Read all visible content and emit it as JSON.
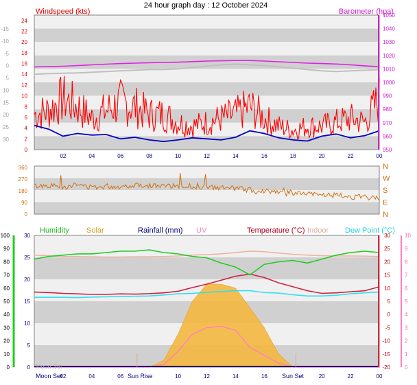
{
  "title": "24 hour graph day : 12 October 2024",
  "colors": {
    "wind": "#ff0000",
    "gust": "#ff0000",
    "avg": "#0000c0",
    "baro": "#e020e0",
    "baro_trace": "#c0c0c0",
    "dir": "#d07010",
    "humidity": "#22cc22",
    "solar": "#f5b840",
    "rain": "#000080",
    "uv": "#ff80c0",
    "temp": "#d02040",
    "indoor": "#f0b0a0",
    "dew": "#30e0f0",
    "band_dark": "#d0d0d0",
    "band_light": "#f0f0f0"
  },
  "x_ticks": [
    "02",
    "04",
    "06",
    "08",
    "10",
    "12",
    "14",
    "16",
    "18",
    "20",
    "22",
    "00"
  ],
  "chart_data": [
    {
      "type": "line",
      "title": "Windspeed (kts)",
      "left_axis": {
        "label": "Windspeed (kts)",
        "ticks": [
          "0",
          "2",
          "4",
          "6",
          "8",
          "10",
          "12",
          "14",
          "16",
          "18",
          "20",
          "22",
          "24"
        ],
        "range": [
          0,
          25
        ]
      },
      "outer_axis": {
        "ticks": [
          "-15",
          "-10",
          "-5",
          "0",
          "5",
          "10",
          "15",
          "20",
          "25",
          "30"
        ]
      },
      "right_axis": {
        "label": "Barometer (hpa)",
        "ticks": [
          "950",
          "960",
          "970",
          "980",
          "990",
          "1000",
          "1010",
          "1020",
          "1030",
          "1040",
          "1050"
        ],
        "range": [
          950,
          1050
        ]
      },
      "x_hours": [
        0,
        1,
        2,
        3,
        4,
        5,
        6,
        7,
        8,
        9,
        10,
        11,
        12,
        13,
        14,
        15,
        16,
        17,
        18,
        19,
        20,
        21,
        22,
        23,
        24
      ],
      "series": [
        {
          "name": "Barometer (hpa)",
          "values": [
            1011.5,
            1011.7,
            1012,
            1012.5,
            1013,
            1013.5,
            1014,
            1014.3,
            1014.6,
            1014.8,
            1015,
            1015.4,
            1015.8,
            1016,
            1016.2,
            1016.2,
            1015.8,
            1015.3,
            1014.8,
            1014.3,
            1014,
            1013.6,
            1013,
            1012.3,
            1011.6
          ]
        },
        {
          "name": "trace",
          "values": [
            1006,
            1006.5,
            1006.8,
            1007,
            1007.5,
            1008,
            1008.5,
            1009,
            1009.5,
            1009.5,
            1010,
            1011,
            1012,
            1013,
            1013.5,
            1013,
            1012.5,
            1011.5,
            1010.5,
            1009.5,
            1008.5,
            1008,
            1008.5,
            1009,
            1009.5
          ]
        },
        {
          "name": "gust",
          "values": [
            9,
            10,
            13,
            11,
            8,
            10,
            12,
            11,
            9,
            9,
            7,
            6,
            7,
            8,
            9,
            11,
            8,
            6,
            5,
            6,
            6,
            7,
            8,
            7,
            13
          ]
        },
        {
          "name": "average",
          "values": [
            4.5,
            3.8,
            2.5,
            3,
            2.7,
            2.8,
            2,
            2.3,
            1.8,
            1.5,
            1.8,
            2.2,
            2,
            1.8,
            2.3,
            3.5,
            3,
            2.2,
            1.8,
            1.6,
            2.5,
            2.9,
            2.2,
            2.6,
            3.5
          ]
        }
      ]
    },
    {
      "type": "scatter",
      "title": "Wind direction",
      "left_axis": {
        "ticks": [
          "0",
          "90",
          "180",
          "270",
          "360"
        ],
        "range": [
          0,
          360
        ]
      },
      "right_axis": {
        "ticks": [
          "N",
          "E",
          "S",
          "W",
          "N"
        ]
      },
      "x_hours": [
        0,
        1,
        2,
        3,
        4,
        5,
        6,
        7,
        8,
        9,
        10,
        11,
        12,
        13,
        14,
        15,
        16,
        17,
        18,
        19,
        20,
        21,
        22,
        23,
        24
      ],
      "series": [
        {
          "name": "direction",
          "values": [
            210,
            215,
            205,
            220,
            200,
            210,
            205,
            220,
            215,
            210,
            205,
            210,
            200,
            195,
            195,
            180,
            175,
            170,
            160,
            150,
            145,
            140,
            130,
            125,
            120
          ]
        }
      ]
    },
    {
      "type": "line",
      "title": "Temperature",
      "legend": [
        "Humidity",
        "Solar",
        "Rainfall (mm)",
        "UV",
        "Temperature (°C)",
        "Indoor",
        "Dew Point (°C)"
      ],
      "humidity_axis": {
        "ticks": [
          "0",
          "10",
          "20",
          "30",
          "40",
          "50",
          "60",
          "70",
          "80",
          "90",
          "100"
        ],
        "range": [
          0,
          100
        ]
      },
      "rain_axis": {
        "ticks": [
          "0",
          "5",
          "10",
          "15",
          "20",
          "25",
          "30"
        ],
        "range": [
          0,
          30
        ]
      },
      "temp_axis": {
        "ticks": [
          "-20",
          "-15",
          "-10",
          "-5",
          "0",
          "5",
          "10",
          "15",
          "20",
          "25",
          "30"
        ],
        "range": [
          -20,
          30
        ]
      },
      "uv_axis": {
        "ticks": [
          "0",
          "1",
          "2",
          "3",
          "4",
          "5",
          "6",
          "7",
          "8",
          "9",
          "10"
        ],
        "range": [
          0,
          10
        ]
      },
      "x_hours": [
        0,
        1,
        2,
        3,
        4,
        5,
        6,
        7,
        8,
        9,
        10,
        11,
        12,
        13,
        14,
        15,
        16,
        17,
        18,
        19,
        20,
        21,
        22,
        23,
        24
      ],
      "series": [
        {
          "name": "Humidity",
          "values": [
            82,
            84,
            85,
            86,
            86,
            87,
            88,
            88,
            89,
            87,
            86,
            84,
            83,
            79,
            76,
            70,
            78,
            80,
            81,
            79,
            82,
            85,
            87,
            88,
            87
          ]
        },
        {
          "name": "Temperature (°C)",
          "values": [
            8.5,
            8.3,
            8,
            7.8,
            7.6,
            7.6,
            7.8,
            7.7,
            7.9,
            8.2,
            8.8,
            10.2,
            11.5,
            13,
            14.5,
            15.3,
            14,
            12,
            10.5,
            9,
            8,
            8.2,
            8.6,
            9,
            10.5
          ]
        },
        {
          "name": "Indoor",
          "values": [
            22.5,
            22.3,
            22,
            22,
            21.9,
            21.8,
            21.8,
            21.9,
            21.9,
            22,
            22.2,
            22.5,
            22.7,
            23,
            23.5,
            24,
            23.8,
            23.3,
            22.8,
            22.5,
            22.3,
            22.2,
            22.2,
            22.1,
            22
          ]
        },
        {
          "name": "Dew Point (°C)",
          "values": [
            6.5,
            6.5,
            6.5,
            6.4,
            6.6,
            6.7,
            6.8,
            6.9,
            7,
            7.4,
            7.8,
            8,
            8.4,
            8.7,
            9,
            9,
            8.3,
            8.1,
            7.5,
            7,
            7,
            7.3,
            7.8,
            8.2,
            8.5
          ]
        },
        {
          "name": "Solar",
          "values": [
            0,
            0,
            0,
            0,
            0,
            0,
            0,
            0,
            0,
            0.5,
            2.5,
            5,
            6.3,
            6.3,
            6,
            4.5,
            3,
            1,
            0,
            0,
            0,
            0,
            0,
            0,
            0
          ]
        },
        {
          "name": "UV",
          "values": [
            0,
            0,
            0,
            0,
            0,
            0,
            0,
            0,
            0,
            0.2,
            1.2,
            2.5,
            3,
            3.1,
            2.8,
            1.5,
            0.9,
            0.3,
            0,
            0,
            0,
            0,
            0,
            0,
            0
          ]
        }
      ]
    }
  ],
  "events": {
    "moon_set": "Moon Set",
    "sun_rise": "Sun Rise",
    "sun_set": "Sun Set",
    "moon_rise_ghost": "Moon Set"
  }
}
